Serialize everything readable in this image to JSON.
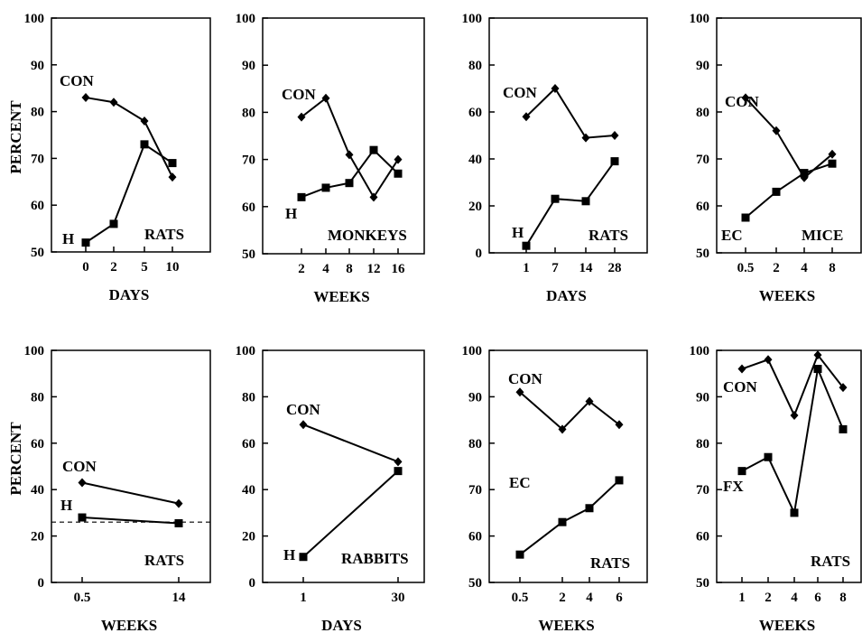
{
  "figure": {
    "ylabel": "PERCENT"
  },
  "chart_data": [
    {
      "type": "line",
      "species": "RATS",
      "xlabel": "DAYS",
      "ylim": [
        50,
        100
      ],
      "yticks": [
        50,
        60,
        70,
        80,
        90,
        100
      ],
      "categories": [
        "0",
        "2",
        "5",
        "10"
      ],
      "series": [
        {
          "name": "CON",
          "marker": "diamond",
          "values": [
            83,
            82,
            78,
            66
          ]
        },
        {
          "name": "H",
          "marker": "square",
          "values": [
            52,
            56,
            73,
            69
          ]
        }
      ]
    },
    {
      "type": "line",
      "species": "MONKEYS",
      "xlabel": "WEEKS",
      "ylim": [
        50,
        100
      ],
      "yticks": [
        50,
        60,
        70,
        80,
        90,
        100
      ],
      "categories": [
        "2",
        "4",
        "8",
        "12",
        "16"
      ],
      "series": [
        {
          "name": "CON",
          "marker": "diamond",
          "values": [
            79,
            83,
            71,
            62,
            70
          ]
        },
        {
          "name": "H",
          "marker": "square",
          "values": [
            62,
            64,
            65,
            72,
            67
          ]
        }
      ]
    },
    {
      "type": "line",
      "species": "RATS",
      "xlabel": "DAYS",
      "ylim": [
        0,
        100
      ],
      "yticks": [
        0,
        20,
        40,
        60,
        80,
        100
      ],
      "categories": [
        "1",
        "7",
        "14",
        "28"
      ],
      "series": [
        {
          "name": "CON",
          "marker": "diamond",
          "values": [
            58,
            70,
            49,
            50
          ]
        },
        {
          "name": "H",
          "marker": "square",
          "values": [
            3,
            23,
            22,
            39
          ]
        }
      ]
    },
    {
      "type": "line",
      "species": "MICE",
      "xlabel": "WEEKS",
      "ylim": [
        50,
        100
      ],
      "yticks": [
        50,
        60,
        70,
        80,
        90,
        100
      ],
      "categories": [
        "0.5",
        "2",
        "4",
        "8"
      ],
      "series": [
        {
          "name": "CON",
          "marker": "diamond",
          "values": [
            83,
            76,
            66,
            71
          ]
        },
        {
          "name": "EC",
          "marker": "square",
          "values": [
            57.5,
            63,
            67,
            69
          ]
        }
      ]
    },
    {
      "type": "line",
      "species": "RATS",
      "xlabel": "WEEKS",
      "ylim": [
        0,
        100
      ],
      "yticks": [
        0,
        20,
        40,
        60,
        80,
        100
      ],
      "categories": [
        "0.5",
        "14"
      ],
      "reference_line": 26,
      "series": [
        {
          "name": "CON",
          "marker": "diamond",
          "values": [
            43,
            34
          ]
        },
        {
          "name": "H",
          "marker": "square",
          "values": [
            28,
            25.5
          ]
        }
      ]
    },
    {
      "type": "line",
      "species": "RABBITS",
      "xlabel": "DAYS",
      "ylim": [
        0,
        100
      ],
      "yticks": [
        0,
        20,
        40,
        60,
        80,
        100
      ],
      "categories": [
        "1",
        "30"
      ],
      "series": [
        {
          "name": "CON",
          "marker": "diamond",
          "values": [
            68,
            52
          ]
        },
        {
          "name": "H",
          "marker": "square",
          "values": [
            11,
            48
          ]
        }
      ]
    },
    {
      "type": "line",
      "species": "RATS",
      "xlabel": "WEEKS",
      "ylim": [
        50,
        100
      ],
      "yticks": [
        50,
        60,
        70,
        80,
        90,
        100
      ],
      "categories": [
        "0.5",
        "2",
        "4",
        "6"
      ],
      "series": [
        {
          "name": "CON",
          "marker": "diamond",
          "values": [
            91,
            83,
            89,
            84
          ]
        },
        {
          "name": "EC",
          "marker": "square",
          "values": [
            56,
            63,
            66,
            72
          ]
        }
      ]
    },
    {
      "type": "line",
      "species": "RATS",
      "xlabel": "WEEKS",
      "ylim": [
        50,
        100
      ],
      "yticks": [
        50,
        60,
        70,
        80,
        90,
        100
      ],
      "categories": [
        "1",
        "2",
        "4",
        "6",
        "8"
      ],
      "series": [
        {
          "name": "CON",
          "marker": "diamond",
          "values": [
            96,
            98,
            86,
            99,
            92
          ]
        },
        {
          "name": "FX",
          "marker": "square",
          "values": [
            74,
            77,
            65,
            96,
            83
          ]
        }
      ]
    }
  ]
}
